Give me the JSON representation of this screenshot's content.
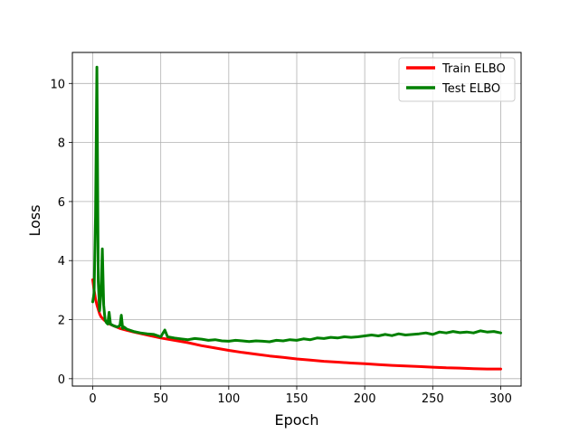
{
  "chart_data": {
    "type": "line",
    "title": "",
    "xlabel": "Epoch",
    "ylabel": "Loss",
    "xlim": [
      -15,
      315
    ],
    "ylim": [
      -0.25,
      11.05
    ],
    "xticks": [
      0,
      50,
      100,
      150,
      200,
      250,
      300
    ],
    "yticks": [
      0,
      2,
      4,
      6,
      8,
      10
    ],
    "grid": true,
    "legend_position": "top-right",
    "series": [
      {
        "name": "Train ELBO",
        "color": "#ff0000",
        "x": [
          0,
          1,
          2,
          3,
          4,
          5,
          6,
          7,
          8,
          10,
          12,
          15,
          20,
          25,
          30,
          40,
          50,
          60,
          70,
          80,
          90,
          100,
          110,
          120,
          130,
          140,
          150,
          160,
          170,
          180,
          190,
          200,
          210,
          220,
          230,
          240,
          250,
          260,
          270,
          280,
          290,
          300
        ],
        "values": [
          3.35,
          3.0,
          2.7,
          2.5,
          2.35,
          2.2,
          2.1,
          2.05,
          2.0,
          1.92,
          1.86,
          1.8,
          1.7,
          1.64,
          1.58,
          1.48,
          1.38,
          1.3,
          1.22,
          1.12,
          1.04,
          0.96,
          0.89,
          0.83,
          0.77,
          0.72,
          0.67,
          0.63,
          0.59,
          0.56,
          0.53,
          0.51,
          0.48,
          0.45,
          0.43,
          0.41,
          0.39,
          0.37,
          0.36,
          0.34,
          0.33,
          0.33
        ]
      },
      {
        "name": "Test ELBO",
        "color": "#008000",
        "x": [
          0,
          1,
          2,
          3,
          4,
          5,
          6,
          7,
          8,
          9,
          10,
          11,
          12,
          13,
          15,
          18,
          20,
          21,
          22,
          23,
          25,
          30,
          35,
          40,
          45,
          50,
          53,
          55,
          60,
          65,
          70,
          75,
          80,
          85,
          90,
          95,
          100,
          105,
          110,
          115,
          120,
          125,
          130,
          135,
          140,
          145,
          150,
          155,
          160,
          165,
          170,
          175,
          180,
          185,
          190,
          195,
          200,
          205,
          210,
          215,
          220,
          225,
          230,
          235,
          240,
          245,
          250,
          255,
          260,
          265,
          270,
          275,
          280,
          285,
          290,
          295,
          300
        ],
        "values": [
          2.6,
          2.9,
          5.5,
          10.55,
          3.3,
          2.3,
          2.9,
          4.4,
          2.5,
          2.0,
          1.9,
          1.85,
          2.25,
          1.85,
          1.8,
          1.75,
          1.8,
          2.15,
          1.7,
          1.75,
          1.68,
          1.6,
          1.55,
          1.52,
          1.5,
          1.42,
          1.65,
          1.42,
          1.38,
          1.35,
          1.32,
          1.36,
          1.34,
          1.3,
          1.32,
          1.28,
          1.27,
          1.3,
          1.28,
          1.26,
          1.28,
          1.27,
          1.25,
          1.3,
          1.28,
          1.32,
          1.3,
          1.35,
          1.32,
          1.38,
          1.36,
          1.4,
          1.38,
          1.42,
          1.4,
          1.42,
          1.45,
          1.48,
          1.45,
          1.5,
          1.46,
          1.52,
          1.48,
          1.5,
          1.52,
          1.55,
          1.5,
          1.58,
          1.55,
          1.6,
          1.56,
          1.58,
          1.55,
          1.62,
          1.58,
          1.6,
          1.55
        ]
      }
    ]
  }
}
